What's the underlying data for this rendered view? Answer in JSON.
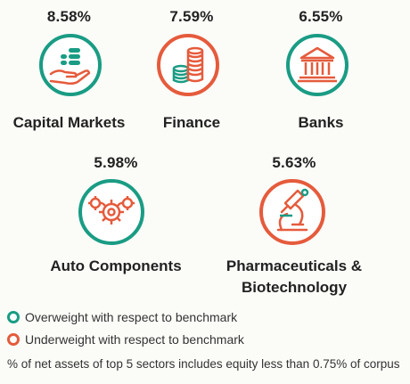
{
  "colors": {
    "overweight": "#1a9c84",
    "underweight": "#e55b3c",
    "text": "#222222"
  },
  "sectors": [
    {
      "pct": "8.58%",
      "name": "Capital Markets",
      "status": "overweight",
      "icon": "hand-coins-icon"
    },
    {
      "pct": "7.59%",
      "name": "Finance",
      "status": "underweight",
      "icon": "coin-stacks-icon"
    },
    {
      "pct": "6.55%",
      "name": "Banks",
      "status": "overweight",
      "icon": "bank-building-icon"
    },
    {
      "pct": "5.98%",
      "name": "Auto Components",
      "status": "overweight",
      "icon": "gears-icon"
    },
    {
      "pct": "5.63%",
      "name_line1": "Pharmaceuticals &",
      "name_line2": "Biotechnology",
      "status": "underweight",
      "icon": "microscope-icon"
    }
  ],
  "legend": {
    "overweight": "Overweight with respect to benchmark",
    "underweight": "Underweight with respect to benchmark"
  },
  "footnote": "% of net assets of top 5 sectors includes equity less than 0.75% of corpus"
}
